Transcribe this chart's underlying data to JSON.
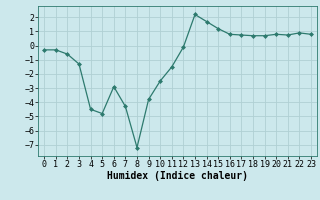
{
  "x": [
    0,
    1,
    2,
    3,
    4,
    5,
    6,
    7,
    8,
    9,
    10,
    11,
    12,
    13,
    14,
    15,
    16,
    17,
    18,
    19,
    20,
    21,
    22,
    23
  ],
  "y": [
    -0.3,
    -0.3,
    -0.6,
    -1.3,
    -4.5,
    -4.8,
    -2.9,
    -4.3,
    -7.2,
    -3.8,
    -2.5,
    -1.5,
    -0.1,
    2.2,
    1.7,
    1.2,
    0.8,
    0.75,
    0.7,
    0.7,
    0.8,
    0.75,
    0.9,
    0.8
  ],
  "xlabel": "Humidex (Indice chaleur)",
  "ylim": [
    -7.8,
    2.8
  ],
  "xlim": [
    -0.5,
    23.5
  ],
  "yticks": [
    -7,
    -6,
    -5,
    -4,
    -3,
    -2,
    -1,
    0,
    1,
    2
  ],
  "xticks": [
    0,
    1,
    2,
    3,
    4,
    5,
    6,
    7,
    8,
    9,
    10,
    11,
    12,
    13,
    14,
    15,
    16,
    17,
    18,
    19,
    20,
    21,
    22,
    23
  ],
  "line_color": "#2d7a6e",
  "marker": "D",
  "marker_size": 2.0,
  "bg_color": "#cce8ec",
  "grid_color": "#b0d0d4",
  "xlabel_fontsize": 7,
  "tick_fontsize": 6,
  "title": ""
}
